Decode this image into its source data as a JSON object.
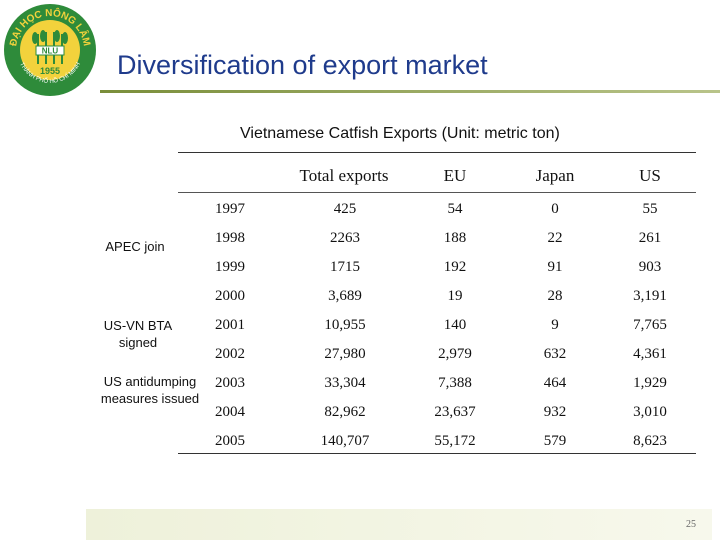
{
  "logo": {
    "top_text": "ĐẠI HỌC NÔNG LÂM",
    "badge": "NLU",
    "year": "1955",
    "bottom_text": "THÀNH PHỐ HỒ CHÍ MINH"
  },
  "slide": {
    "title": "Diversification of export market",
    "subtitle": "Vietnamese Catfish Exports (Unit: metric ton)",
    "page_number": "25"
  },
  "table": {
    "headers": [
      "Total exports",
      "EU",
      "Japan",
      "US"
    ],
    "rows": [
      {
        "year": "1997",
        "total": "425",
        "eu": "54",
        "japan": "0",
        "us": "55"
      },
      {
        "year": "1998",
        "total": "2263",
        "eu": "188",
        "japan": "22",
        "us": "261"
      },
      {
        "year": "1999",
        "total": "1715",
        "eu": "192",
        "japan": "91",
        "us": "903"
      },
      {
        "year": "2000",
        "total": "3,689",
        "eu": "19",
        "japan": "28",
        "us": "3,191"
      },
      {
        "year": "2001",
        "total": "10,955",
        "eu": "140",
        "japan": "9",
        "us": "7,765"
      },
      {
        "year": "2002",
        "total": "27,980",
        "eu": "2,979",
        "japan": "632",
        "us": "4,361"
      },
      {
        "year": "2003",
        "total": "33,304",
        "eu": "7,388",
        "japan": "464",
        "us": "1,929"
      },
      {
        "year": "2004",
        "total": "82,962",
        "eu": "23,637",
        "japan": "932",
        "us": "3,010"
      },
      {
        "year": "2005",
        "total": "140,707",
        "eu": "55,172",
        "japan": "579",
        "us": "8,623"
      }
    ]
  },
  "notes": {
    "apec": "APEC join",
    "bta_line1": "US-VN BTA",
    "bta_line2": "signed",
    "antidumping_line1": "US antidumping",
    "antidumping_line2": "measures issued"
  },
  "colors": {
    "title": "#1f3b8c",
    "logo_green": "#2e8b3a",
    "logo_yellow": "#f2d23c"
  }
}
